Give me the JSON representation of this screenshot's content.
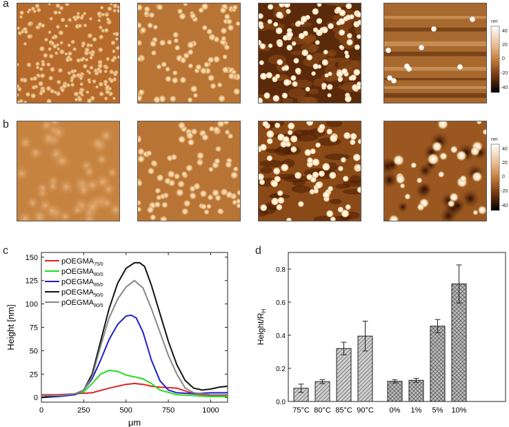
{
  "panels": {
    "a": "a",
    "b": "b",
    "c": "c",
    "d": "d"
  },
  "colorbar": {
    "unit": "nm",
    "ticks": [
      "40",
      "20",
      "0",
      "-20",
      "-40"
    ]
  },
  "colorbar2": {
    "unit": "nm",
    "ticks": [
      "40",
      "20",
      "0",
      "-20",
      "-40"
    ]
  },
  "chart_data": [
    {
      "type": "line",
      "xlabel": "μm",
      "ylabel": "Height [nm]",
      "xlim": [
        0,
        1100
      ],
      "ylim": [
        -5,
        155
      ],
      "xticks": [
        "0",
        "250",
        "500",
        "750",
        "1000"
      ],
      "yticks": [
        "0",
        "25",
        "50",
        "75",
        "100",
        "125",
        "150"
      ],
      "series": [
        {
          "name": "pOEGMA",
          "sub": "75/0",
          "color": "#e02020",
          "x": [
            0,
            100,
            200,
            300,
            400,
            500,
            550,
            600,
            650,
            700,
            800,
            900,
            1000,
            1100
          ],
          "y": [
            3,
            3,
            4,
            5,
            10,
            14,
            15,
            14,
            12,
            11,
            10,
            4,
            2,
            2
          ]
        },
        {
          "name": "pOEGMA",
          "sub": "80/0",
          "color": "#22dd22",
          "x": [
            0,
            100,
            200,
            250,
            300,
            350,
            400,
            450,
            500,
            550,
            600,
            650,
            700,
            800,
            900,
            1000,
            1100
          ],
          "y": [
            2,
            2,
            4,
            6,
            15,
            25,
            29,
            28,
            24,
            22,
            20,
            15,
            8,
            3,
            2,
            1,
            1
          ]
        },
        {
          "name": "pOEGMA",
          "sub": "85/0",
          "color": "#2020c8",
          "x": [
            0,
            100,
            200,
            250,
            300,
            350,
            400,
            450,
            500,
            530,
            560,
            600,
            650,
            700,
            750,
            800,
            900,
            1000,
            1100
          ],
          "y": [
            0,
            1,
            3,
            8,
            20,
            40,
            62,
            78,
            87,
            88,
            85,
            70,
            40,
            18,
            8,
            5,
            4,
            5,
            5
          ]
        },
        {
          "name": "pOEGMA",
          "sub": "90/0",
          "color": "#111111",
          "x": [
            0,
            100,
            200,
            250,
            300,
            350,
            400,
            450,
            500,
            550,
            580,
            610,
            650,
            700,
            750,
            800,
            850,
            900,
            950,
            1000,
            1050,
            1100
          ],
          "y": [
            0,
            2,
            4,
            8,
            25,
            60,
            95,
            122,
            138,
            144,
            144,
            140,
            120,
            90,
            60,
            35,
            18,
            10,
            8,
            9,
            11,
            12
          ]
        },
        {
          "name": "pOEGMA",
          "sub": "80/5",
          "color": "#888888",
          "x": [
            0,
            100,
            200,
            250,
            300,
            350,
            400,
            450,
            500,
            550,
            600,
            650,
            700,
            750,
            800,
            850,
            900,
            1000,
            1100
          ],
          "y": [
            2,
            2,
            4,
            8,
            22,
            55,
            85,
            105,
            118,
            125,
            117,
            95,
            70,
            45,
            25,
            10,
            5,
            3,
            3
          ]
        }
      ]
    },
    {
      "type": "bar",
      "ylabel": "Height/R",
      "ylabel_sub": "H",
      "ylim": [
        0,
        0.9
      ],
      "yticks": [
        "0.0",
        "0.2",
        "0.4",
        "0.6",
        "0.8"
      ],
      "groups": [
        {
          "pattern": "hatch",
          "categories": [
            "75°C",
            "80°C",
            "85°C",
            "90°C"
          ],
          "values": [
            0.08,
            0.12,
            0.32,
            0.395
          ],
          "errors": [
            0.025,
            0.012,
            0.038,
            0.09
          ]
        },
        {
          "pattern": "crosshatch",
          "categories": [
            "0%",
            "1%",
            "5%",
            "10%"
          ],
          "values": [
            0.122,
            0.128,
            0.455,
            0.71
          ],
          "errors": [
            0.01,
            0.012,
            0.04,
            0.115
          ]
        }
      ]
    }
  ]
}
